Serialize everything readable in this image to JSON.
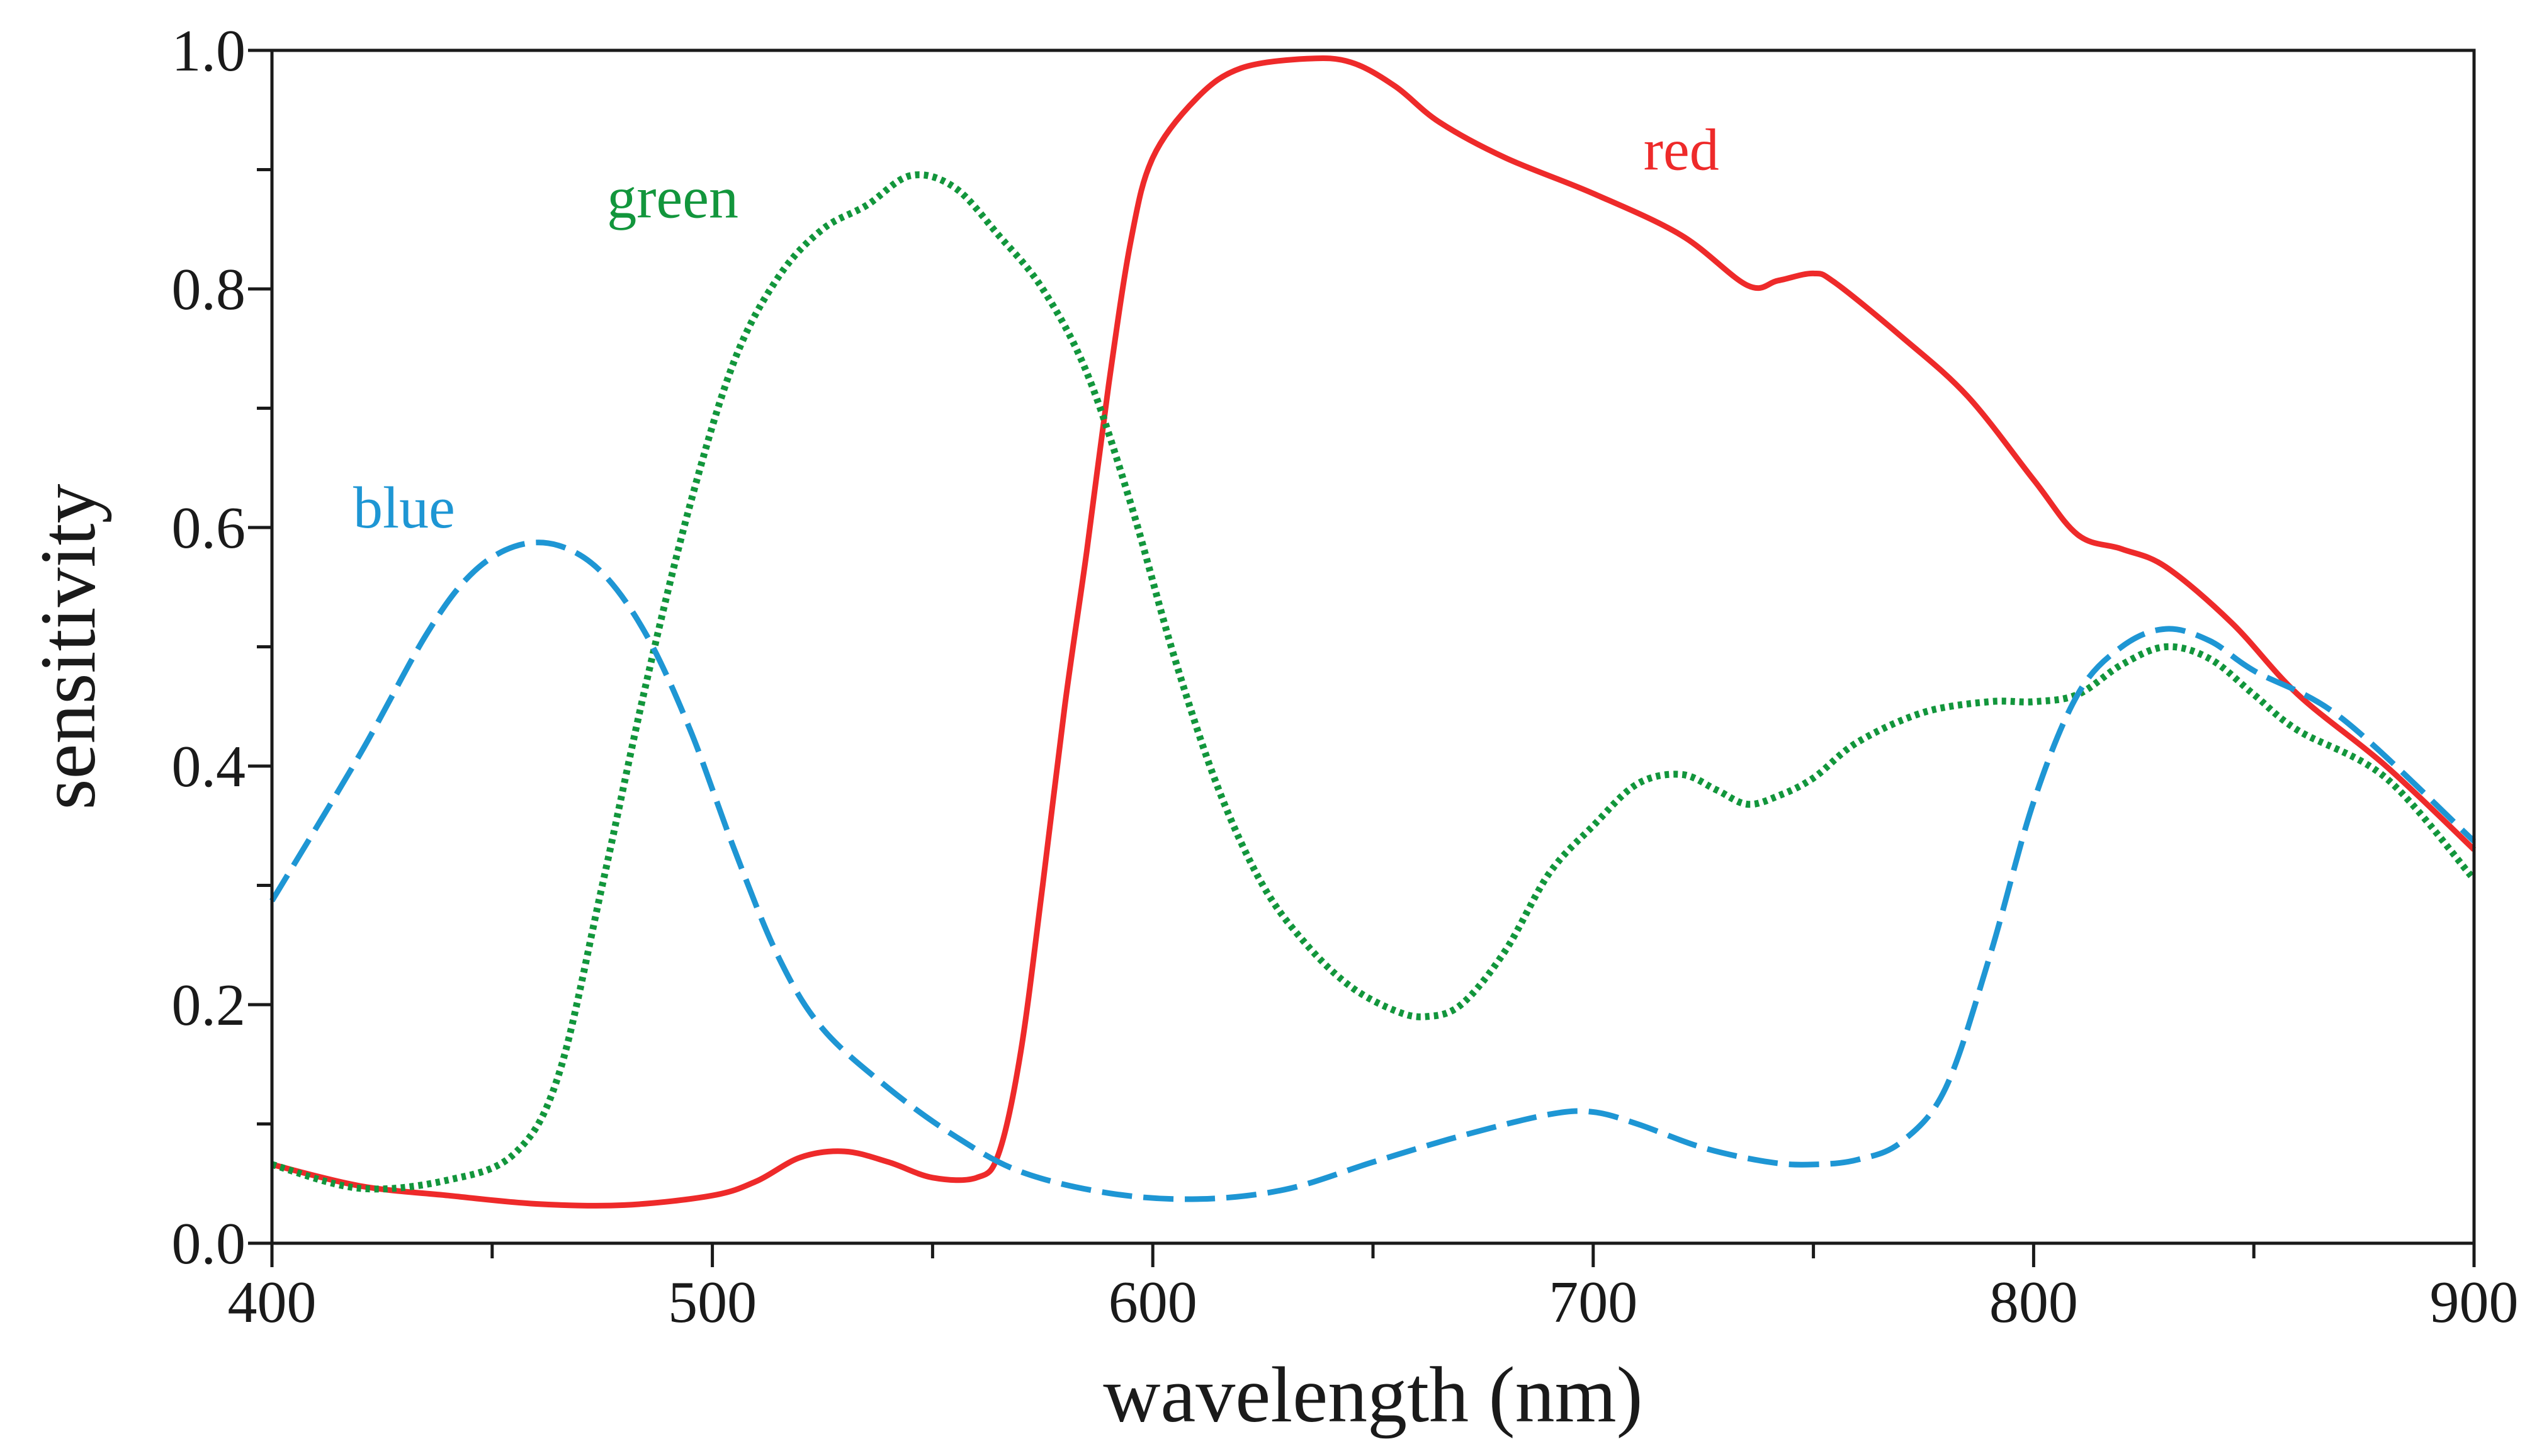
{
  "chart_data": {
    "type": "line",
    "title": "",
    "xlabel": "wavelength (nm)",
    "ylabel": "sensitivity",
    "xlim": [
      400,
      900
    ],
    "ylim": [
      0.0,
      1.0
    ],
    "x_major_ticks": [
      400,
      500,
      600,
      700,
      800,
      900
    ],
    "x_minor_ticks": [
      450,
      550,
      650,
      750,
      850
    ],
    "x_tick_labels": [
      "400",
      "500",
      "600",
      "700",
      "800",
      "900"
    ],
    "y_major_ticks": [
      0.0,
      0.2,
      0.4,
      0.6,
      0.8,
      1.0
    ],
    "y_minor_ticks": [
      0.1,
      0.3,
      0.5,
      0.7,
      0.9
    ],
    "y_tick_labels": [
      "0.0",
      "0.2",
      "0.4",
      "0.6",
      "0.8",
      "1.0"
    ],
    "grid": false,
    "legend": "inline labels",
    "series": [
      {
        "name": "red",
        "label": "red",
        "color": "#ee2a2a",
        "style": "solid",
        "label_at": [
          720,
          0.9
        ],
        "points": [
          [
            400,
            0.066
          ],
          [
            420,
            0.048
          ],
          [
            440,
            0.04
          ],
          [
            460,
            0.033
          ],
          [
            480,
            0.032
          ],
          [
            500,
            0.04
          ],
          [
            510,
            0.052
          ],
          [
            520,
            0.072
          ],
          [
            530,
            0.077
          ],
          [
            540,
            0.068
          ],
          [
            550,
            0.055
          ],
          [
            560,
            0.055
          ],
          [
            565,
            0.075
          ],
          [
            570,
            0.16
          ],
          [
            575,
            0.3
          ],
          [
            580,
            0.45
          ],
          [
            585,
            0.58
          ],
          [
            590,
            0.72
          ],
          [
            595,
            0.84
          ],
          [
            600,
            0.91
          ],
          [
            610,
            0.96
          ],
          [
            620,
            0.985
          ],
          [
            635,
            0.993
          ],
          [
            645,
            0.99
          ],
          [
            655,
            0.97
          ],
          [
            665,
            0.94
          ],
          [
            680,
            0.91
          ],
          [
            700,
            0.88
          ],
          [
            720,
            0.845
          ],
          [
            735,
            0.803
          ],
          [
            742,
            0.807
          ],
          [
            750,
            0.813
          ],
          [
            755,
            0.805
          ],
          [
            770,
            0.76
          ],
          [
            785,
            0.71
          ],
          [
            800,
            0.64
          ],
          [
            810,
            0.594
          ],
          [
            820,
            0.582
          ],
          [
            830,
            0.567
          ],
          [
            845,
            0.52
          ],
          [
            860,
            0.46
          ],
          [
            880,
            0.4
          ],
          [
            900,
            0.33
          ]
        ]
      },
      {
        "name": "green",
        "label": "green",
        "color": "#12963c",
        "style": "dotted",
        "label_at": [
          491,
          0.86
        ],
        "points": [
          [
            400,
            0.066
          ],
          [
            420,
            0.046
          ],
          [
            440,
            0.053
          ],
          [
            455,
            0.075
          ],
          [
            465,
            0.14
          ],
          [
            475,
            0.3
          ],
          [
            485,
            0.47
          ],
          [
            495,
            0.62
          ],
          [
            505,
            0.74
          ],
          [
            515,
            0.81
          ],
          [
            525,
            0.85
          ],
          [
            535,
            0.87
          ],
          [
            545,
            0.895
          ],
          [
            555,
            0.885
          ],
          [
            565,
            0.845
          ],
          [
            575,
            0.8
          ],
          [
            585,
            0.73
          ],
          [
            595,
            0.62
          ],
          [
            605,
            0.49
          ],
          [
            615,
            0.38
          ],
          [
            625,
            0.3
          ],
          [
            635,
            0.25
          ],
          [
            645,
            0.215
          ],
          [
            655,
            0.195
          ],
          [
            662,
            0.19
          ],
          [
            670,
            0.2
          ],
          [
            680,
            0.245
          ],
          [
            690,
            0.31
          ],
          [
            700,
            0.35
          ],
          [
            710,
            0.385
          ],
          [
            720,
            0.393
          ],
          [
            728,
            0.38
          ],
          [
            735,
            0.368
          ],
          [
            742,
            0.375
          ],
          [
            750,
            0.39
          ],
          [
            760,
            0.42
          ],
          [
            775,
            0.445
          ],
          [
            790,
            0.454
          ],
          [
            800,
            0.454
          ],
          [
            810,
            0.46
          ],
          [
            820,
            0.485
          ],
          [
            830,
            0.5
          ],
          [
            840,
            0.49
          ],
          [
            850,
            0.46
          ],
          [
            860,
            0.43
          ],
          [
            880,
            0.39
          ],
          [
            900,
            0.305
          ]
        ]
      },
      {
        "name": "blue",
        "label": "blue",
        "color": "#1e96d4",
        "style": "dashed",
        "label_at": [
          430,
          0.6
        ],
        "points": [
          [
            400,
            0.287
          ],
          [
            420,
            0.41
          ],
          [
            435,
            0.51
          ],
          [
            445,
            0.56
          ],
          [
            455,
            0.584
          ],
          [
            465,
            0.585
          ],
          [
            475,
            0.562
          ],
          [
            485,
            0.51
          ],
          [
            495,
            0.43
          ],
          [
            505,
            0.33
          ],
          [
            515,
            0.24
          ],
          [
            525,
            0.18
          ],
          [
            540,
            0.13
          ],
          [
            555,
            0.09
          ],
          [
            570,
            0.06
          ],
          [
            590,
            0.042
          ],
          [
            610,
            0.037
          ],
          [
            630,
            0.045
          ],
          [
            650,
            0.068
          ],
          [
            670,
            0.09
          ],
          [
            690,
            0.108
          ],
          [
            700,
            0.11
          ],
          [
            710,
            0.1
          ],
          [
            725,
            0.08
          ],
          [
            740,
            0.068
          ],
          [
            750,
            0.066
          ],
          [
            760,
            0.07
          ],
          [
            770,
            0.085
          ],
          [
            780,
            0.13
          ],
          [
            790,
            0.24
          ],
          [
            800,
            0.37
          ],
          [
            810,
            0.46
          ],
          [
            820,
            0.5
          ],
          [
            830,
            0.515
          ],
          [
            840,
            0.505
          ],
          [
            850,
            0.48
          ],
          [
            870,
            0.44
          ],
          [
            900,
            0.337
          ]
        ]
      }
    ]
  }
}
